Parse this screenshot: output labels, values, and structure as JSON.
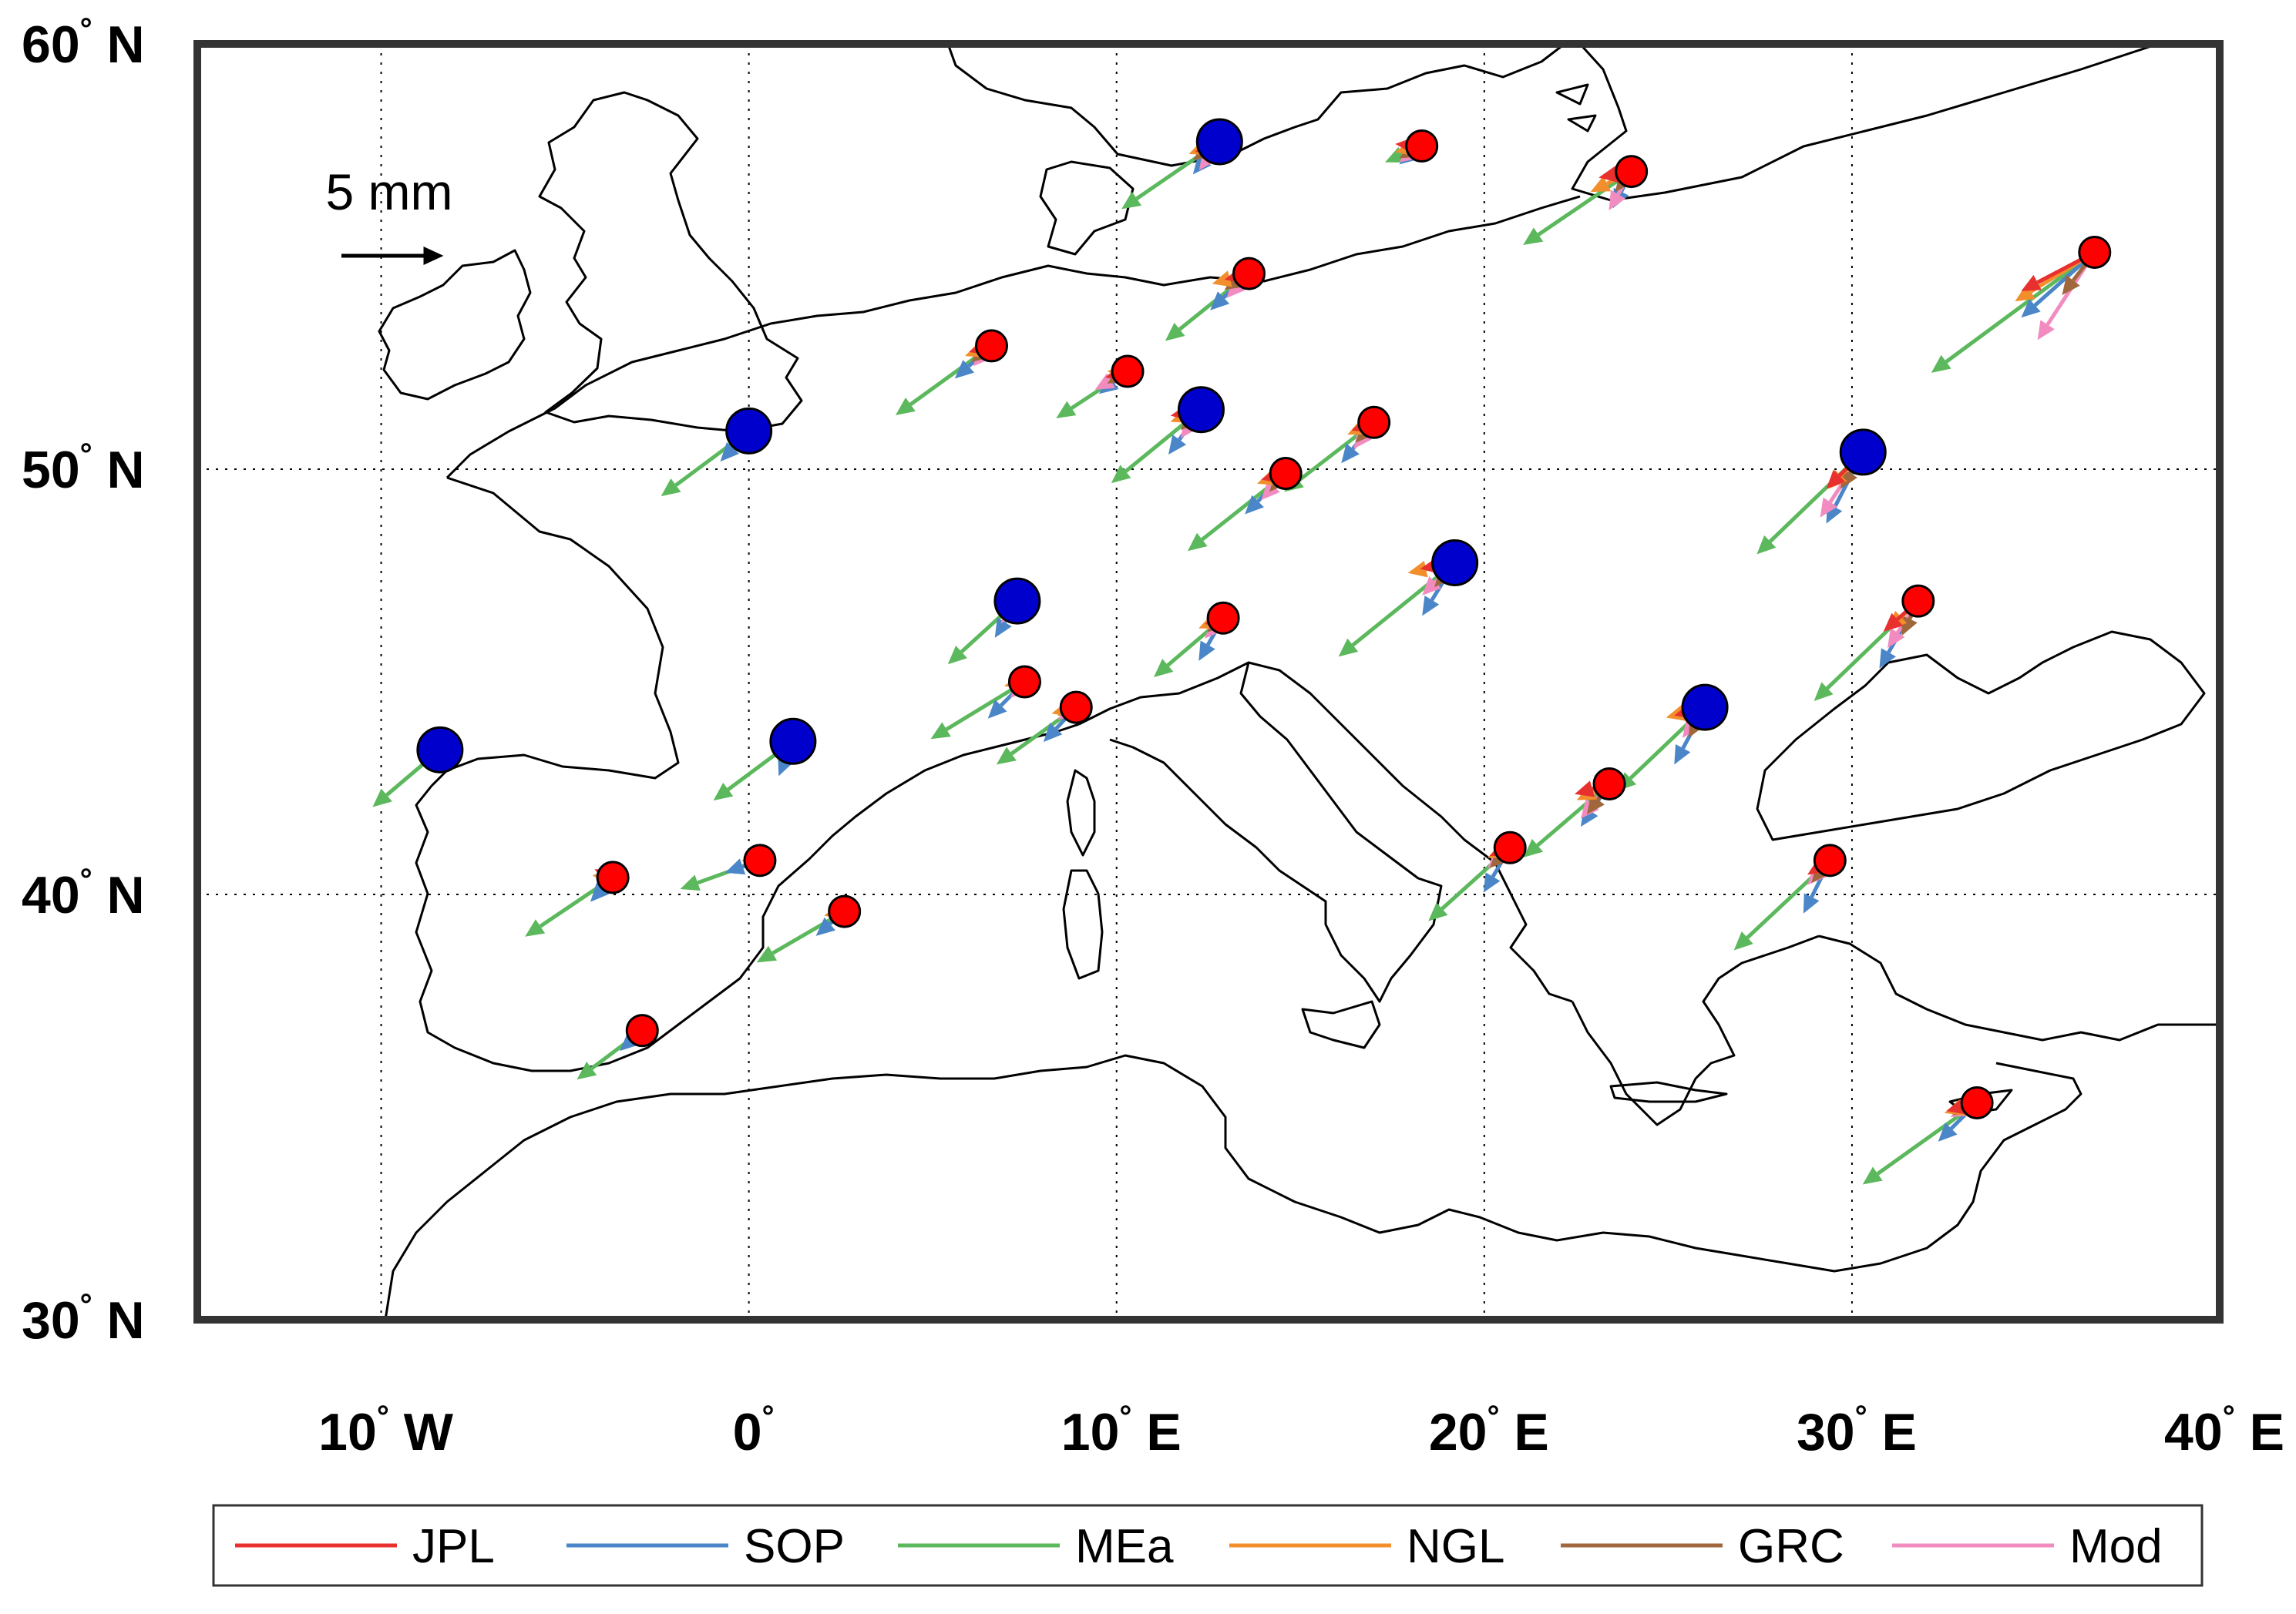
{
  "map": {
    "lon_range": [
      -15,
      40
    ],
    "lat_range": [
      30,
      60
    ],
    "lon_ticks": [
      {
        "value": -10,
        "deg": "10",
        "suffix": "W"
      },
      {
        "value": 0,
        "deg": "0",
        "suffix": ""
      },
      {
        "value": 10,
        "deg": "10",
        "suffix": "E"
      },
      {
        "value": 20,
        "deg": "20",
        "suffix": "E"
      },
      {
        "value": 30,
        "deg": "30",
        "suffix": "E"
      },
      {
        "value": 40,
        "deg": "40",
        "suffix": "E"
      }
    ],
    "lat_ticks": [
      {
        "value": 60,
        "deg": "60",
        "suffix": "N"
      },
      {
        "value": 50,
        "deg": "50",
        "suffix": "N"
      },
      {
        "value": 40,
        "deg": "40",
        "suffix": "N"
      },
      {
        "value": 30,
        "deg": "30",
        "suffix": "N"
      }
    ],
    "grid": "dotted at 10° intervals",
    "scale_label": "5 mm",
    "scale_mm": 5
  },
  "legend": {
    "placement": "bottom-center",
    "entries": [
      {
        "label": "JPL",
        "color": "#e8302e"
      },
      {
        "label": "SOP",
        "color": "#4a86c8"
      },
      {
        "label": "MEa",
        "color": "#5cb85c"
      },
      {
        "label": "NGL",
        "color": "#f28e2b"
      },
      {
        "label": "GRC",
        "color": "#a0673d"
      },
      {
        "label": "Mod",
        "color": "#f28cc0"
      }
    ]
  },
  "colors": {
    "red_station": "#ff0000",
    "blue_station": "#0000cc",
    "coast": "#000000",
    "frame": "#333333"
  },
  "chart_data": {
    "type": "vector-field-map",
    "units": "mm (horizontal displacement)",
    "series_order": [
      "JPL",
      "SOP",
      "MEa",
      "NGL",
      "GRC",
      "Mod"
    ],
    "stations": [
      {
        "lon": 12.8,
        "lat": 57.7,
        "marker": "blue",
        "vectors": [
          [
            -1.2,
            -0.5
          ],
          [
            -1.3,
            -1.6
          ],
          [
            -4.8,
            -3.3
          ],
          [
            -1.5,
            -0.6
          ],
          [
            -1.3,
            -0.9
          ],
          [
            -1.0,
            -1.4
          ]
        ]
      },
      {
        "lon": 18.3,
        "lat": 57.6,
        "marker": "red",
        "vectors": [
          [
            -1.3,
            0.1
          ],
          [
            -1.1,
            -0.9
          ],
          [
            -1.8,
            -0.8
          ],
          [
            -1.3,
            -0.3
          ],
          [
            -1.1,
            -0.6
          ],
          [
            -1.1,
            -0.8
          ]
        ]
      },
      {
        "lon": 24.0,
        "lat": 57.0,
        "marker": "red",
        "vectors": [
          [
            -1.6,
            -0.3
          ],
          [
            -0.9,
            -1.8
          ],
          [
            -5.3,
            -3.6
          ],
          [
            -2.0,
            -1.0
          ],
          [
            -0.8,
            -1.0
          ],
          [
            -1.1,
            -1.9
          ]
        ]
      },
      {
        "lon": 36.6,
        "lat": 55.1,
        "marker": "red",
        "vectors": [
          [
            -3.6,
            -1.9
          ],
          [
            -3.6,
            -3.2
          ],
          [
            -8.0,
            -5.9
          ],
          [
            -3.9,
            -2.4
          ],
          [
            -1.6,
            -2.1
          ],
          [
            -2.8,
            -4.3
          ]
        ]
      },
      {
        "lon": 13.6,
        "lat": 54.6,
        "marker": "red",
        "vectors": [
          [
            -1.2,
            -0.3
          ],
          [
            -1.9,
            -1.8
          ],
          [
            -4.1,
            -3.3
          ],
          [
            -1.8,
            -0.5
          ],
          [
            -1.2,
            -0.8
          ],
          [
            -1.1,
            -1.2
          ]
        ]
      },
      {
        "lon": 6.6,
        "lat": 52.9,
        "marker": "red",
        "vectors": [
          [
            -1.1,
            -0.3
          ],
          [
            -1.8,
            -1.6
          ],
          [
            -4.7,
            -3.4
          ],
          [
            -1.3,
            -0.5
          ],
          [
            -1.0,
            -0.8
          ],
          [
            -0.9,
            -1.0
          ]
        ]
      },
      {
        "lon": 10.3,
        "lat": 52.3,
        "marker": "red",
        "vectors": [
          [
            -1.1,
            -0.3
          ],
          [
            -1.4,
            -1.1
          ],
          [
            -3.5,
            -2.3
          ],
          [
            -1.0,
            0.0
          ],
          [
            -1.0,
            -0.6
          ],
          [
            -1.6,
            -0.9
          ]
        ]
      },
      {
        "lon": 0.0,
        "lat": 50.9,
        "marker": "blue",
        "vectors": [
          [
            -0.6,
            -0.4
          ],
          [
            -1.4,
            -1.5
          ],
          [
            -4.3,
            -3.2
          ],
          [
            -1.0,
            -0.2
          ],
          [
            -0.7,
            -0.6
          ],
          [
            -0.6,
            -0.8
          ]
        ]
      },
      {
        "lon": 12.3,
        "lat": 51.4,
        "marker": "blue",
        "vectors": [
          [
            -1.5,
            -0.3
          ],
          [
            -1.6,
            -2.2
          ],
          [
            -4.4,
            -3.6
          ],
          [
            -1.5,
            -0.6
          ],
          [
            -1.0,
            -1.0
          ],
          [
            -1.0,
            -1.4
          ]
        ]
      },
      {
        "lon": 17.0,
        "lat": 51.1,
        "marker": "red",
        "vectors": [
          [
            -1.1,
            -0.4
          ],
          [
            -1.6,
            -2.0
          ],
          [
            -4.4,
            -3.4
          ],
          [
            -1.3,
            -0.6
          ],
          [
            -0.9,
            -1.0
          ],
          [
            -1.0,
            -1.3
          ]
        ]
      },
      {
        "lon": 14.6,
        "lat": 49.9,
        "marker": "red",
        "vectors": [
          [
            -1.2,
            -0.3
          ],
          [
            -2.0,
            -2.0
          ],
          [
            -4.8,
            -3.8
          ],
          [
            -1.4,
            -0.5
          ],
          [
            -0.8,
            -0.9
          ],
          [
            -1.2,
            -1.3
          ]
        ]
      },
      {
        "lon": 30.3,
        "lat": 50.4,
        "marker": "blue",
        "vectors": [
          [
            -1.8,
            -1.8
          ],
          [
            -1.8,
            -3.5
          ],
          [
            -5.2,
            -5.0
          ],
          [
            -1.7,
            -1.8
          ],
          [
            -1.1,
            -1.8
          ],
          [
            -2.1,
            -3.2
          ]
        ]
      },
      {
        "lon": 7.3,
        "lat": 46.9,
        "marker": "blue",
        "vectors": [
          [
            -0.8,
            -0.5
          ],
          [
            -1.1,
            -1.8
          ],
          [
            -3.4,
            -3.1
          ],
          [
            -0.9,
            -0.5
          ],
          [
            -0.7,
            -0.8
          ],
          [
            -0.8,
            -1.1
          ]
        ]
      },
      {
        "lon": 12.9,
        "lat": 46.5,
        "marker": "red",
        "vectors": [
          [
            -0.9,
            -0.3
          ],
          [
            -1.2,
            -2.1
          ],
          [
            -3.4,
            -2.9
          ],
          [
            -1.2,
            -0.5
          ],
          [
            -0.8,
            -0.7
          ],
          [
            -0.9,
            -1.0
          ]
        ]
      },
      {
        "lon": 19.2,
        "lat": 47.8,
        "marker": "blue",
        "vectors": [
          [
            -1.7,
            -0.3
          ],
          [
            -1.6,
            -2.6
          ],
          [
            -5.7,
            -4.6
          ],
          [
            -2.3,
            -0.5
          ],
          [
            -1.0,
            -1.2
          ],
          [
            -1.6,
            -1.6
          ]
        ]
      },
      {
        "lon": 31.8,
        "lat": 46.9,
        "marker": "red",
        "vectors": [
          [
            -1.7,
            -1.5
          ],
          [
            -1.9,
            -3.3
          ],
          [
            -5.1,
            -4.9
          ],
          [
            -1.5,
            -1.4
          ],
          [
            -0.8,
            -1.7
          ],
          [
            -1.5,
            -2.3
          ]
        ]
      },
      {
        "lon": -8.4,
        "lat": 43.4,
        "marker": "blue",
        "vectors": [
          [
            -0.2,
            -0.1
          ],
          [
            -0.5,
            -1.0
          ],
          [
            -3.3,
            -2.8
          ],
          [
            -0.2,
            0.0
          ],
          [
            -0.1,
            -0.1
          ],
          [
            -0.1,
            -0.2
          ]
        ]
      },
      {
        "lon": 1.2,
        "lat": 43.6,
        "marker": "blue",
        "vectors": [
          [
            -0.4,
            -0.3
          ],
          [
            -0.7,
            -1.7
          ],
          [
            -3.9,
            -2.9
          ],
          [
            -0.6,
            -0.2
          ],
          [
            -0.3,
            -0.2
          ],
          [
            -0.2,
            -1.0
          ]
        ]
      },
      {
        "lon": 7.5,
        "lat": 45.0,
        "marker": "red",
        "vectors": [
          [
            -0.7,
            -0.3
          ],
          [
            -1.8,
            -1.8
          ],
          [
            -4.6,
            -2.8
          ],
          [
            -1.0,
            -0.2
          ],
          [
            -0.5,
            -0.6
          ],
          [
            -0.7,
            -0.8
          ]
        ]
      },
      {
        "lon": 8.9,
        "lat": 44.4,
        "marker": "red",
        "vectors": [
          [
            -0.8,
            -0.2
          ],
          [
            -1.6,
            -1.7
          ],
          [
            -3.9,
            -2.8
          ],
          [
            -1.2,
            -0.3
          ],
          [
            -0.9,
            -0.4
          ],
          [
            -0.9,
            -0.6
          ]
        ]
      },
      {
        "lon": 26.0,
        "lat": 44.4,
        "marker": "blue",
        "vectors": [
          [
            -1.5,
            -0.4
          ],
          [
            -1.5,
            -2.8
          ],
          [
            -4.3,
            -4.1
          ],
          [
            -1.9,
            -0.5
          ],
          [
            -0.8,
            -1.5
          ],
          [
            -1.1,
            -1.5
          ]
        ]
      },
      {
        "lon": -3.7,
        "lat": 40.4,
        "marker": "red",
        "vectors": [
          [
            -0.9,
            0.4
          ],
          [
            -1.1,
            -1.2
          ],
          [
            -4.3,
            -2.9
          ],
          [
            -1.0,
            0.1
          ],
          [
            -0.4,
            -0.3
          ],
          [
            -0.6,
            -0.4
          ]
        ]
      },
      {
        "lon": 0.3,
        "lat": 40.8,
        "marker": "red",
        "vectors": [
          [
            -0.8,
            0.2
          ],
          [
            -1.7,
            -0.6
          ],
          [
            -3.9,
            -1.4
          ],
          [
            -0.9,
            0.0
          ],
          [
            -0.5,
            -0.3
          ],
          [
            -0.6,
            -0.4
          ]
        ]
      },
      {
        "lon": 2.6,
        "lat": 39.6,
        "marker": "red",
        "vectors": [
          [
            -0.8,
            0.2
          ],
          [
            -1.4,
            -1.2
          ],
          [
            -4.3,
            -2.5
          ],
          [
            -1.0,
            -0.2
          ],
          [
            -0.5,
            -0.2
          ],
          [
            -0.6,
            -0.4
          ]
        ]
      },
      {
        "lon": -2.9,
        "lat": 36.8,
        "marker": "red",
        "vectors": [
          [
            -0.5,
            0.0
          ],
          [
            -1.1,
            -1.0
          ],
          [
            -3.2,
            -2.4
          ],
          [
            -0.5,
            0.0
          ],
          [
            -0.2,
            -0.1
          ],
          [
            -0.4,
            -0.2
          ]
        ]
      },
      {
        "lon": 23.4,
        "lat": 42.6,
        "marker": "red",
        "vectors": [
          [
            -1.7,
            -0.5
          ],
          [
            -1.4,
            -2.1
          ],
          [
            -4.2,
            -3.6
          ],
          [
            -1.6,
            -0.8
          ],
          [
            -1.1,
            -1.5
          ],
          [
            -1.4,
            -1.7
          ]
        ]
      },
      {
        "lon": 20.7,
        "lat": 41.1,
        "marker": "red",
        "vectors": [
          [
            -1.0,
            -0.4
          ],
          [
            -1.3,
            -2.2
          ],
          [
            -4.0,
            -3.6
          ],
          [
            -1.1,
            -0.5
          ],
          [
            -1.0,
            -1.0
          ],
          [
            -1.1,
            -1.0
          ]
        ]
      },
      {
        "lon": 29.4,
        "lat": 40.8,
        "marker": "red",
        "vectors": [
          [
            -1.1,
            -0.7
          ],
          [
            -1.3,
            -2.6
          ],
          [
            -4.7,
            -4.4
          ],
          [
            -1.1,
            -0.7
          ],
          [
            -0.9,
            -1.1
          ],
          [
            -1.1,
            -1.2
          ]
        ]
      },
      {
        "lon": 33.4,
        "lat": 35.1,
        "marker": "red",
        "vectors": [
          [
            -1.5,
            -0.4
          ],
          [
            -1.9,
            -1.9
          ],
          [
            -5.6,
            -4.0
          ],
          [
            -1.6,
            -0.5
          ],
          [
            -1.2,
            -0.6
          ],
          [
            -1.3,
            -0.7
          ]
        ]
      }
    ]
  }
}
